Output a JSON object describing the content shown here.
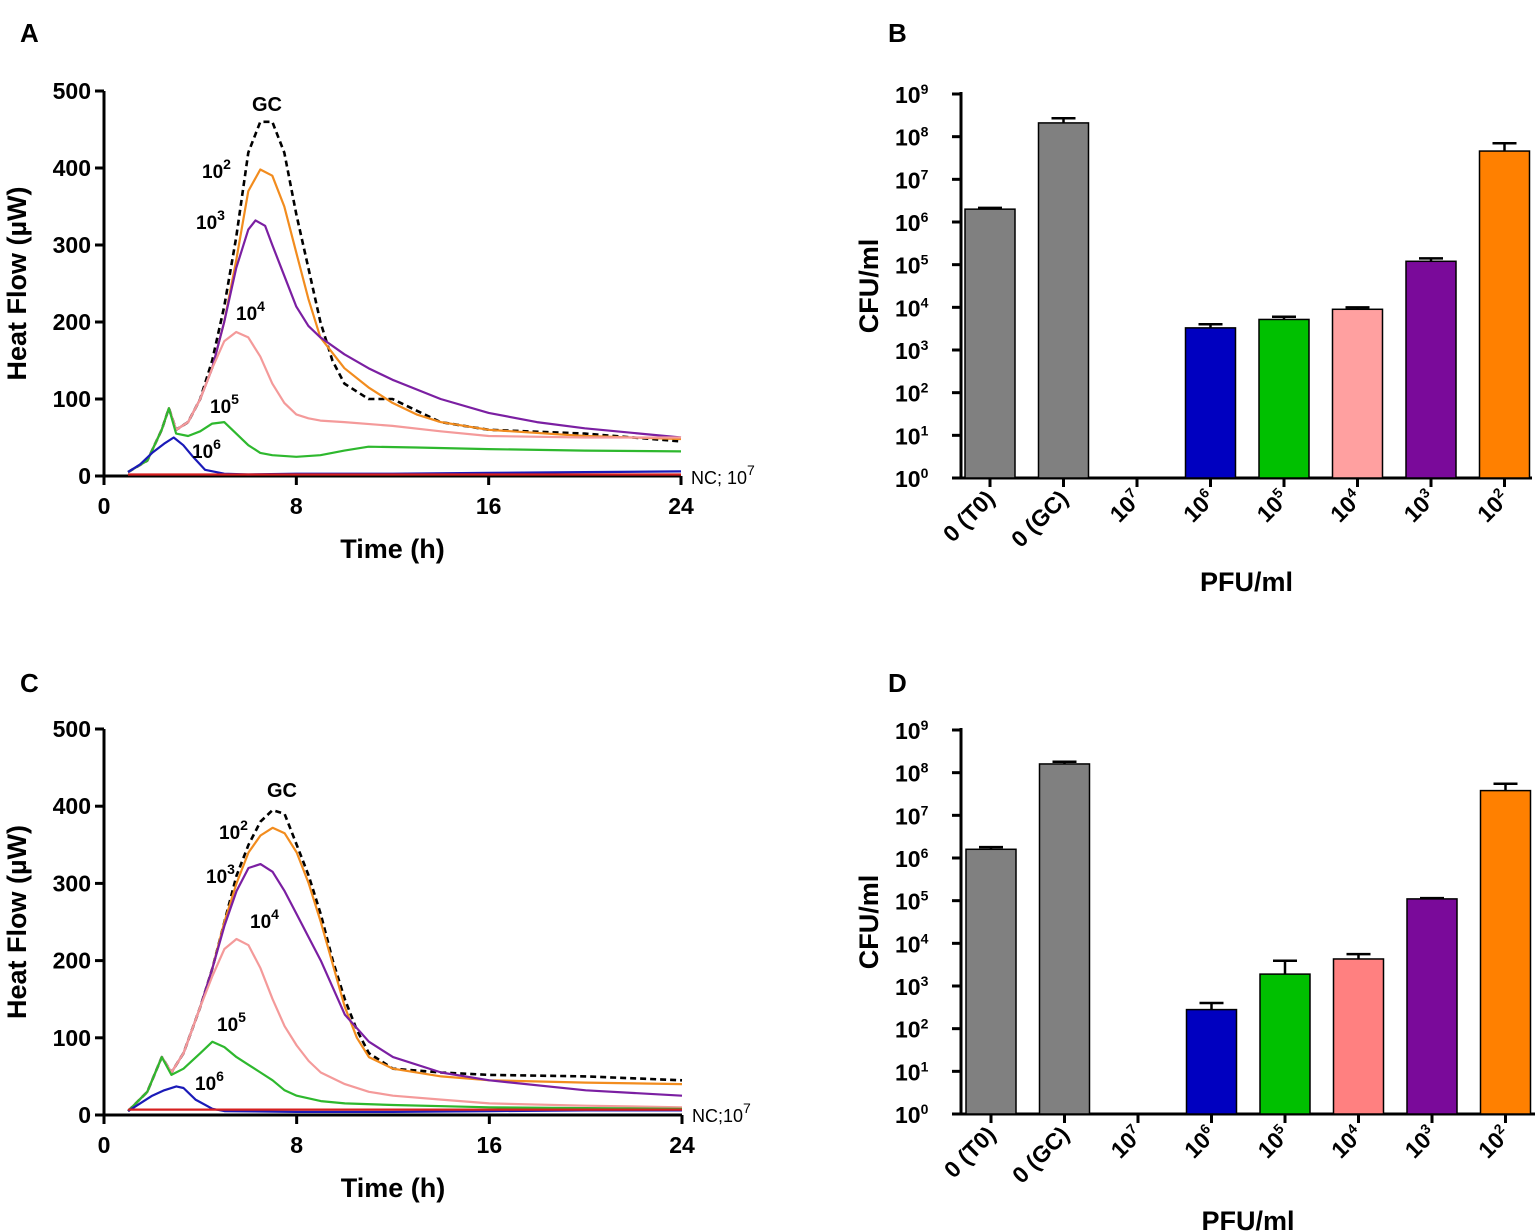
{
  "figure": {
    "panel_letters": [
      "A",
      "B",
      "C",
      "D"
    ]
  },
  "chart_data": [
    {
      "panel": "A",
      "type": "line",
      "xlabel": "Time (h)",
      "ylabel": "Heat Flow (µW)",
      "xlim": [
        0,
        24
      ],
      "ylim": [
        0,
        500
      ],
      "xticks": [
        "0",
        "8",
        "16",
        "24"
      ],
      "yticks": [
        "0",
        "100",
        "200",
        "300",
        "400",
        "500"
      ],
      "nc_label": "NC; 10",
      "nc_label_sup": "7",
      "series": [
        {
          "name": "GC",
          "label": "GC",
          "label_sup": "",
          "color": "#000000",
          "dashed": true,
          "x": [
            1,
            1.8,
            2.4,
            2.7,
            3,
            3.5,
            4,
            4.5,
            5,
            5.5,
            6,
            6.5,
            7,
            7.5,
            8,
            8.5,
            9,
            9.5,
            10,
            11,
            12,
            13,
            14,
            16,
            20,
            24
          ],
          "y": [
            5,
            20,
            60,
            88,
            60,
            70,
            100,
            150,
            220,
            310,
            420,
            460,
            460,
            420,
            340,
            270,
            200,
            150,
            120,
            100,
            100,
            85,
            70,
            60,
            55,
            45
          ]
        },
        {
          "name": "10^2",
          "label": "10",
          "label_sup": "2",
          "color": "#f28c1e",
          "dashed": false,
          "x": [
            1,
            1.8,
            2.4,
            2.7,
            3,
            3.5,
            4,
            4.5,
            5,
            5.5,
            6,
            6.5,
            7,
            7.5,
            8,
            8.5,
            9,
            10,
            11,
            12,
            13,
            14,
            16,
            20,
            24
          ],
          "y": [
            5,
            20,
            60,
            88,
            60,
            70,
            100,
            140,
            200,
            280,
            370,
            398,
            390,
            350,
            290,
            230,
            180,
            140,
            115,
            95,
            80,
            70,
            60,
            52,
            48
          ]
        },
        {
          "name": "10^3",
          "label": "10",
          "label_sup": "3",
          "color": "#7b1fa2",
          "dashed": false,
          "x": [
            1,
            1.8,
            2.4,
            2.7,
            3,
            3.5,
            4,
            4.5,
            5,
            5.5,
            6,
            6.3,
            6.7,
            7,
            7.5,
            8,
            8.5,
            9,
            10,
            11,
            12,
            14,
            16,
            18,
            20,
            24
          ],
          "y": [
            5,
            20,
            60,
            88,
            60,
            70,
            100,
            140,
            200,
            270,
            320,
            332,
            325,
            300,
            260,
            220,
            195,
            180,
            158,
            140,
            125,
            100,
            82,
            70,
            62,
            50
          ]
        },
        {
          "name": "10^4",
          "label": "10",
          "label_sup": "4",
          "color": "#f49a9a",
          "dashed": false,
          "x": [
            1,
            1.8,
            2.4,
            2.7,
            3,
            3.5,
            4,
            4.5,
            5,
            5.5,
            6,
            6.5,
            7,
            7.5,
            8,
            8.5,
            9,
            10,
            12,
            14,
            16,
            20,
            24
          ],
          "y": [
            5,
            20,
            60,
            88,
            60,
            70,
            100,
            140,
            175,
            187,
            180,
            155,
            120,
            95,
            80,
            75,
            72,
            70,
            65,
            58,
            52,
            50,
            50
          ]
        },
        {
          "name": "10^5",
          "label": "10",
          "label_sup": "5",
          "color": "#2eb82e",
          "dashed": false,
          "x": [
            1,
            1.8,
            2.4,
            2.7,
            3,
            3.5,
            4,
            4.5,
            5,
            5.5,
            6,
            6.5,
            7,
            8,
            9,
            10,
            11,
            13,
            16,
            20,
            24
          ],
          "y": [
            5,
            20,
            60,
            88,
            55,
            52,
            58,
            68,
            70,
            55,
            40,
            30,
            27,
            25,
            27,
            33,
            38,
            37,
            35,
            33,
            32
          ]
        },
        {
          "name": "10^6",
          "label": "10",
          "label_sup": "6",
          "color": "#1a1ab8",
          "dashed": false,
          "x": [
            1,
            1.5,
            2,
            2.5,
            2.9,
            3.3,
            3.7,
            4.2,
            5,
            6,
            8,
            12,
            16,
            20,
            24
          ],
          "y": [
            5,
            15,
            30,
            42,
            50,
            40,
            25,
            8,
            3,
            2,
            3,
            3,
            4,
            5,
            6
          ]
        },
        {
          "name": "NC",
          "label": "",
          "label_sup": "",
          "color": "#d62020",
          "dashed": false,
          "x": [
            1,
            24
          ],
          "y": [
            2,
            2
          ]
        }
      ]
    },
    {
      "panel": "B",
      "type": "bar",
      "log_scale": true,
      "xlabel": "PFU/ml",
      "ylabel": "CFU/ml",
      "ylim": [
        1,
        1000000000
      ],
      "ytick_exponents": [
        "0",
        "1",
        "2",
        "3",
        "4",
        "5",
        "6",
        "7",
        "8",
        "9"
      ],
      "ytick_base": "10",
      "categories": [
        {
          "label": "0 (T0)",
          "sup": ""
        },
        {
          "label": "0 (GC)",
          "sup": ""
        },
        {
          "label": "10",
          "sup": "7"
        },
        {
          "label": "10",
          "sup": "6"
        },
        {
          "label": "10",
          "sup": "5"
        },
        {
          "label": "10",
          "sup": "4"
        },
        {
          "label": "10",
          "sup": "3"
        },
        {
          "label": "10",
          "sup": "2"
        }
      ],
      "values": [
        2000000,
        210000000,
        null,
        3300,
        5200,
        9000,
        120000,
        46000000
      ],
      "errors": [
        2150000,
        270000000,
        null,
        4000,
        6000,
        10000,
        140000,
        70000000
      ],
      "colors": [
        "#808080",
        "#808080",
        "#ffffff",
        "#0000c0",
        "#00c000",
        "#ffa0a0",
        "#7a0a9a",
        "#ff8000"
      ]
    },
    {
      "panel": "C",
      "type": "line",
      "xlabel": "Time (h)",
      "ylabel": "Heat Flow (µW)",
      "xlim": [
        0,
        24
      ],
      "ylim": [
        0,
        500
      ],
      "xticks": [
        "0",
        "8",
        "16",
        "24"
      ],
      "yticks": [
        "0",
        "100",
        "200",
        "300",
        "400",
        "500"
      ],
      "nc_label": "NC;10",
      "nc_label_sup": "7",
      "series": [
        {
          "name": "GC",
          "label": "GC",
          "label_sup": "",
          "color": "#000000",
          "dashed": true,
          "x": [
            1,
            1.8,
            2.4,
            2.8,
            3.3,
            4,
            4.5,
            5,
            5.5,
            6,
            6.5,
            7,
            7.5,
            8,
            8.5,
            9,
            9.5,
            10,
            10.5,
            11,
            12,
            14,
            16,
            20,
            24
          ],
          "y": [
            5,
            30,
            75,
            55,
            80,
            140,
            190,
            250,
            310,
            350,
            380,
            395,
            390,
            350,
            310,
            260,
            200,
            150,
            110,
            80,
            60,
            55,
            52,
            50,
            45
          ]
        },
        {
          "name": "10^2",
          "label": "10",
          "label_sup": "2",
          "color": "#f28c1e",
          "dashed": false,
          "x": [
            1,
            1.8,
            2.4,
            2.8,
            3.3,
            4,
            4.5,
            5,
            5.5,
            6,
            6.5,
            7,
            7.5,
            8,
            8.5,
            9,
            9.5,
            10,
            10.5,
            11,
            12,
            14,
            16,
            20,
            24
          ],
          "y": [
            5,
            30,
            75,
            55,
            80,
            140,
            190,
            250,
            300,
            340,
            362,
            372,
            365,
            340,
            300,
            250,
            195,
            140,
            100,
            75,
            60,
            50,
            45,
            42,
            40
          ]
        },
        {
          "name": "10^3",
          "label": "10",
          "label_sup": "3",
          "color": "#7b1fa2",
          "dashed": false,
          "x": [
            1,
            1.8,
            2.4,
            2.8,
            3.3,
            4,
            4.5,
            5,
            5.5,
            6,
            6.5,
            7,
            7.5,
            8,
            8.5,
            9,
            9.5,
            10,
            11,
            12,
            14,
            16,
            20,
            24
          ],
          "y": [
            5,
            30,
            75,
            55,
            80,
            140,
            190,
            245,
            290,
            320,
            325,
            315,
            290,
            260,
            230,
            200,
            165,
            130,
            95,
            75,
            55,
            45,
            32,
            25
          ]
        },
        {
          "name": "10^4",
          "label": "10",
          "label_sup": "4",
          "color": "#f49a9a",
          "dashed": false,
          "x": [
            1,
            1.8,
            2.4,
            2.8,
            3.3,
            4,
            4.5,
            5,
            5.5,
            6,
            6.5,
            7,
            7.5,
            8,
            8.5,
            9,
            10,
            11,
            12,
            14,
            16,
            20,
            24
          ],
          "y": [
            5,
            30,
            75,
            55,
            80,
            140,
            180,
            215,
            228,
            220,
            190,
            150,
            115,
            90,
            70,
            55,
            40,
            30,
            25,
            20,
            15,
            12,
            10
          ]
        },
        {
          "name": "10^5",
          "label": "10",
          "label_sup": "5",
          "color": "#2eb82e",
          "dashed": false,
          "x": [
            1,
            1.8,
            2.4,
            2.8,
            3.3,
            4,
            4.5,
            5,
            5.5,
            6,
            6.5,
            7,
            7.5,
            8,
            9,
            10,
            12,
            16,
            20,
            24
          ],
          "y": [
            5,
            30,
            75,
            52,
            60,
            80,
            95,
            88,
            75,
            65,
            55,
            45,
            32,
            25,
            18,
            15,
            13,
            10,
            9,
            8
          ]
        },
        {
          "name": "10^6",
          "label": "10",
          "label_sup": "6",
          "color": "#1a1ab8",
          "dashed": false,
          "x": [
            1,
            1.5,
            2,
            2.5,
            3,
            3.3,
            3.8,
            4.5,
            5,
            8,
            12,
            16,
            20,
            24
          ],
          "y": [
            5,
            15,
            25,
            32,
            37,
            35,
            20,
            8,
            5,
            4,
            4,
            5,
            6,
            6
          ]
        },
        {
          "name": "NC",
          "label": "",
          "label_sup": "",
          "color": "#d62020",
          "dashed": false,
          "x": [
            1,
            24
          ],
          "y": [
            7,
            7
          ]
        }
      ]
    },
    {
      "panel": "D",
      "type": "bar",
      "log_scale": true,
      "xlabel": "PFU/ml",
      "ylabel": "CFU/ml",
      "ylim": [
        1,
        1000000000
      ],
      "ytick_exponents": [
        "0",
        "1",
        "2",
        "3",
        "4",
        "5",
        "6",
        "7",
        "8",
        "9"
      ],
      "ytick_base": "10",
      "categories": [
        {
          "label": "0 (T0)",
          "sup": ""
        },
        {
          "label": "0 (GC)",
          "sup": ""
        },
        {
          "label": "10",
          "sup": "7"
        },
        {
          "label": "10",
          "sup": "6"
        },
        {
          "label": "10",
          "sup": "5"
        },
        {
          "label": "10",
          "sup": "4"
        },
        {
          "label": "10",
          "sup": "3"
        },
        {
          "label": "10",
          "sup": "2"
        }
      ],
      "values": [
        1600000,
        160000000,
        null,
        280,
        1900,
        4300,
        110000,
        38000000
      ],
      "errors": [
        1800000,
        180000000,
        null,
        400,
        3900,
        5600,
        115000,
        55000000
      ],
      "colors": [
        "#808080",
        "#808080",
        "#ffffff",
        "#0000c0",
        "#00c000",
        "#ff8080",
        "#7a0a9a",
        "#ff8000"
      ]
    }
  ]
}
